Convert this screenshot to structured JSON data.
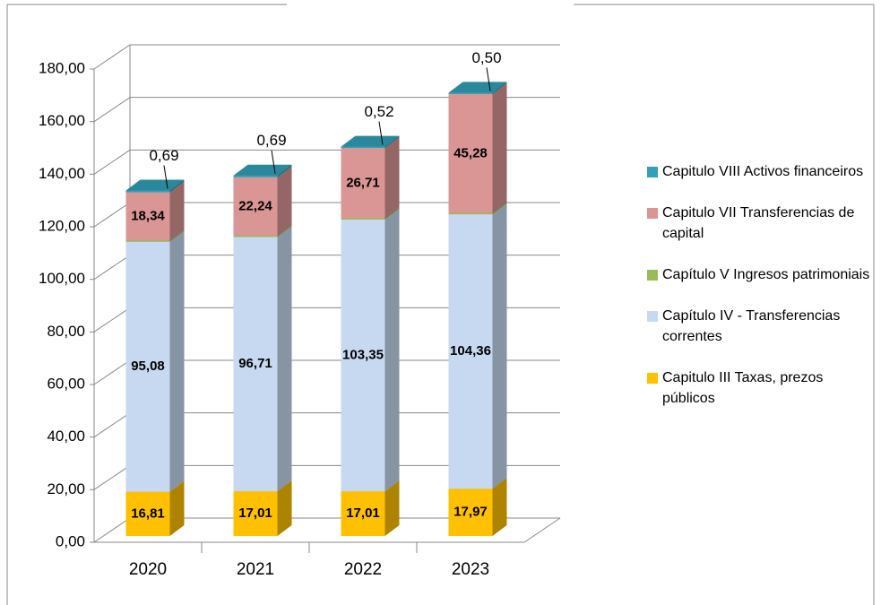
{
  "chart_data": {
    "type": "bar3d_stacked",
    "categories": [
      "2020",
      "2021",
      "2022",
      "2023"
    ],
    "series": [
      {
        "name": "Capitulo III Taxas, prezos públicos",
        "color": "#ffc000",
        "values": [
          16.81,
          17.01,
          17.01,
          17.97
        ],
        "value_labels": [
          "16,81",
          "17,01",
          "17,01",
          "17,97"
        ]
      },
      {
        "name": "Capítulo IV - Transferencias correntes",
        "color": "#c6d9f1",
        "values": [
          95.08,
          96.71,
          103.35,
          104.36
        ],
        "value_labels": [
          "95,08",
          "96,71",
          "103,35",
          "104,36"
        ]
      },
      {
        "name": "Capítulo V Ingresos patrimoniais",
        "color": "#9bbb59",
        "values": [
          0.5,
          0.5,
          0.5,
          0.5
        ]
      },
      {
        "name": "Capitulo VII Transferencias de capital",
        "color": "#d99694",
        "values": [
          18.34,
          22.24,
          26.71,
          45.28
        ],
        "value_labels": [
          "18,34",
          "22,24",
          "26,71",
          "45,28"
        ]
      },
      {
        "name": "Capitulo VIII Activos financeiros",
        "color": "#31a0b8",
        "values": [
          0.69,
          0.69,
          0.52,
          0.5
        ],
        "value_labels": [
          "0,69",
          "0,69",
          "0,52",
          "0,50"
        ]
      }
    ],
    "ylim": [
      0,
      180
    ],
    "yticks": [
      {
        "value": 0,
        "label": "0,00"
      },
      {
        "value": 20,
        "label": "20,00"
      },
      {
        "value": 40,
        "label": "40,00"
      },
      {
        "value": 60,
        "label": "60,00"
      },
      {
        "value": 80,
        "label": "80,00"
      },
      {
        "value": 100,
        "label": "100,00"
      },
      {
        "value": 120,
        "label": "120,00"
      },
      {
        "value": 140,
        "label": "140,00"
      },
      {
        "value": 160,
        "label": "160,00"
      },
      {
        "value": 180,
        "label": "180,00"
      }
    ],
    "grid": true
  }
}
